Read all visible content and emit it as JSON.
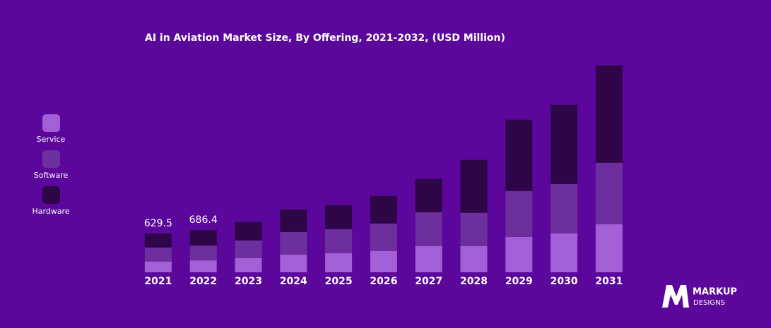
{
  "chart_data": {
    "type": "stacked_bar",
    "title": "AI in Aviation Market Size, By Offering, 2021-2032, (USD Million)",
    "categories": [
      "2021",
      "2022",
      "2023",
      "2024",
      "2025",
      "2026",
      "2027",
      "2028",
      "2029",
      "2030",
      "2031"
    ],
    "series": [
      {
        "name": "Service",
        "color": "#a25fd6",
        "values": [
          175.5,
          194,
          230,
          288,
          311,
          345,
          426,
          426,
          575,
          633,
          782
        ]
      },
      {
        "name": "Software",
        "color": "#6e2f9e",
        "values": [
          227,
          240.4,
          288,
          368,
          391,
          449,
          552,
          541,
          748,
          805,
          1001
        ]
      },
      {
        "name": "Hardware",
        "color": "#2e0648",
        "values": [
          227,
          252,
          299,
          368,
          391,
          449,
          541,
          863,
          1162,
          1288,
          1587
        ]
      }
    ],
    "totals": [
      629.5,
      686.4,
      null,
      null,
      null,
      null,
      null,
      null,
      null,
      null,
      null
    ],
    "ylim": [
      0,
      3400
    ],
    "logo": {
      "brand": "MARKUP",
      "sub": "DESIGNS"
    }
  }
}
